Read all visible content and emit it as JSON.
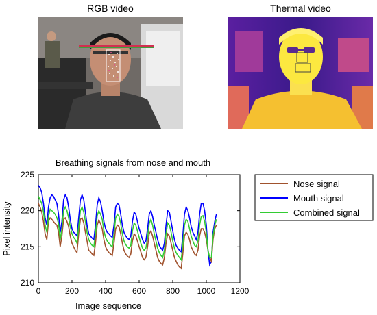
{
  "panels": {
    "rgb_title": "RGB video",
    "thermal_title": "Thermal video"
  },
  "chart_data": {
    "type": "line",
    "title": "Breathing signals from nose and mouth",
    "xlabel": "Image sequence",
    "ylabel": "Pixel intensity",
    "xlim": [
      0,
      1200
    ],
    "ylim": [
      210,
      225
    ],
    "xticks": [
      0,
      200,
      400,
      600,
      800,
      1000,
      1200
    ],
    "yticks": [
      210,
      215,
      220,
      225
    ],
    "legend_position": "top-right",
    "grid": false,
    "x": [
      0,
      10,
      20,
      30,
      40,
      50,
      60,
      70,
      80,
      90,
      100,
      110,
      120,
      130,
      140,
      150,
      160,
      170,
      180,
      190,
      200,
      210,
      220,
      230,
      240,
      250,
      260,
      270,
      280,
      290,
      300,
      310,
      320,
      330,
      340,
      350,
      360,
      370,
      380,
      390,
      400,
      410,
      420,
      430,
      440,
      450,
      460,
      470,
      480,
      490,
      500,
      510,
      520,
      530,
      540,
      550,
      560,
      570,
      580,
      590,
      600,
      610,
      620,
      630,
      640,
      650,
      660,
      670,
      680,
      690,
      700,
      710,
      720,
      730,
      740,
      750,
      760,
      770,
      780,
      790,
      800,
      810,
      820,
      830,
      840,
      850,
      860,
      870,
      880,
      890,
      900,
      910,
      920,
      930,
      940,
      950,
      960,
      970,
      980,
      990,
      1000,
      1010,
      1020,
      1030,
      1040,
      1050,
      1060
    ],
    "series": [
      {
        "name": "Nose signal",
        "color": "#a0522d",
        "values": [
          221.0,
          220.5,
          219.8,
          218.5,
          216.8,
          216.0,
          218.5,
          219.0,
          218.8,
          218.5,
          218.2,
          218.0,
          217.0,
          215.0,
          216.5,
          218.8,
          219.0,
          218.5,
          217.8,
          216.5,
          215.5,
          215.0,
          214.5,
          214.2,
          216.8,
          218.8,
          219.0,
          218.3,
          217.0,
          215.8,
          214.5,
          214.3,
          214.0,
          213.8,
          215.5,
          218.0,
          218.7,
          218.2,
          217.5,
          216.0,
          215.0,
          214.5,
          214.2,
          214.0,
          213.8,
          215.5,
          217.5,
          218.0,
          217.8,
          216.8,
          215.5,
          214.5,
          214.0,
          213.7,
          213.5,
          214.0,
          215.8,
          216.8,
          216.5,
          215.8,
          215.0,
          214.3,
          213.5,
          213.2,
          213.5,
          215.0,
          216.8,
          217.2,
          216.5,
          215.5,
          214.5,
          213.5,
          213.0,
          212.7,
          212.5,
          213.5,
          215.5,
          216.8,
          216.5,
          215.5,
          214.5,
          213.5,
          213.0,
          212.5,
          212.2,
          212.0,
          214.0,
          216.5,
          217.0,
          216.7,
          216.0,
          215.0,
          214.5,
          214.0,
          213.8,
          214.5,
          216.5,
          217.5,
          217.5,
          217.0,
          216.0,
          214.5,
          213.5,
          213.0,
          216.0,
          217.5,
          218.0
        ]
      },
      {
        "name": "Mouth signal",
        "color": "#0000ff",
        "values": [
          223.5,
          223.2,
          222.5,
          221.0,
          219.0,
          218.0,
          220.5,
          221.8,
          222.2,
          222.0,
          221.5,
          221.0,
          219.5,
          217.0,
          218.5,
          221.5,
          222.2,
          221.8,
          220.5,
          218.8,
          217.5,
          217.0,
          216.8,
          216.5,
          219.0,
          221.5,
          222.2,
          221.5,
          219.8,
          218.0,
          216.8,
          216.5,
          216.2,
          216.0,
          218.0,
          220.8,
          221.8,
          221.2,
          220.0,
          218.5,
          217.5,
          217.0,
          216.8,
          216.5,
          216.3,
          218.0,
          220.5,
          221.0,
          220.8,
          219.5,
          218.0,
          217.0,
          216.5,
          216.2,
          216.0,
          216.5,
          218.5,
          219.8,
          219.5,
          218.5,
          217.5,
          216.8,
          216.0,
          215.5,
          215.8,
          217.5,
          219.5,
          220.0,
          219.2,
          218.0,
          217.0,
          216.0,
          215.2,
          214.8,
          214.5,
          215.5,
          218.0,
          220.0,
          219.8,
          218.5,
          217.2,
          216.0,
          215.2,
          214.8,
          214.5,
          214.3,
          216.5,
          219.5,
          220.5,
          220.0,
          219.0,
          217.8,
          217.0,
          216.5,
          216.0,
          217.0,
          219.5,
          221.0,
          221.0,
          220.0,
          218.0,
          214.5,
          212.5,
          213.0,
          217.0,
          218.5,
          219.5
        ]
      },
      {
        "name": "Combined signal",
        "color": "#33cc33",
        "values": [
          222.0,
          221.5,
          221.0,
          219.8,
          218.0,
          217.0,
          219.2,
          220.2,
          220.0,
          219.8,
          219.5,
          219.0,
          218.2,
          216.0,
          217.5,
          220.0,
          220.5,
          220.0,
          219.0,
          217.8,
          216.8,
          216.3,
          216.0,
          215.5,
          217.8,
          220.0,
          220.5,
          219.8,
          218.5,
          217.0,
          216.0,
          215.5,
          215.2,
          215.0,
          216.8,
          219.3,
          220.0,
          219.5,
          218.8,
          217.2,
          216.3,
          215.8,
          215.5,
          215.2,
          215.0,
          216.8,
          219.0,
          219.5,
          219.2,
          218.2,
          216.8,
          215.8,
          215.3,
          215.0,
          214.8,
          215.2,
          217.2,
          218.3,
          218.0,
          217.2,
          216.3,
          215.5,
          214.8,
          214.5,
          214.8,
          216.2,
          218.2,
          218.8,
          218.0,
          216.8,
          215.8,
          214.8,
          214.2,
          213.8,
          213.5,
          214.5,
          216.8,
          218.3,
          218.0,
          217.0,
          215.8,
          214.8,
          214.2,
          213.8,
          213.5,
          213.2,
          215.2,
          218.0,
          218.8,
          218.5,
          217.5,
          216.5,
          215.8,
          215.2,
          215.0,
          215.8,
          218.0,
          219.2,
          219.3,
          218.5,
          217.0,
          214.5,
          213.5,
          213.5,
          216.5,
          218.0,
          218.8
        ]
      }
    ]
  }
}
